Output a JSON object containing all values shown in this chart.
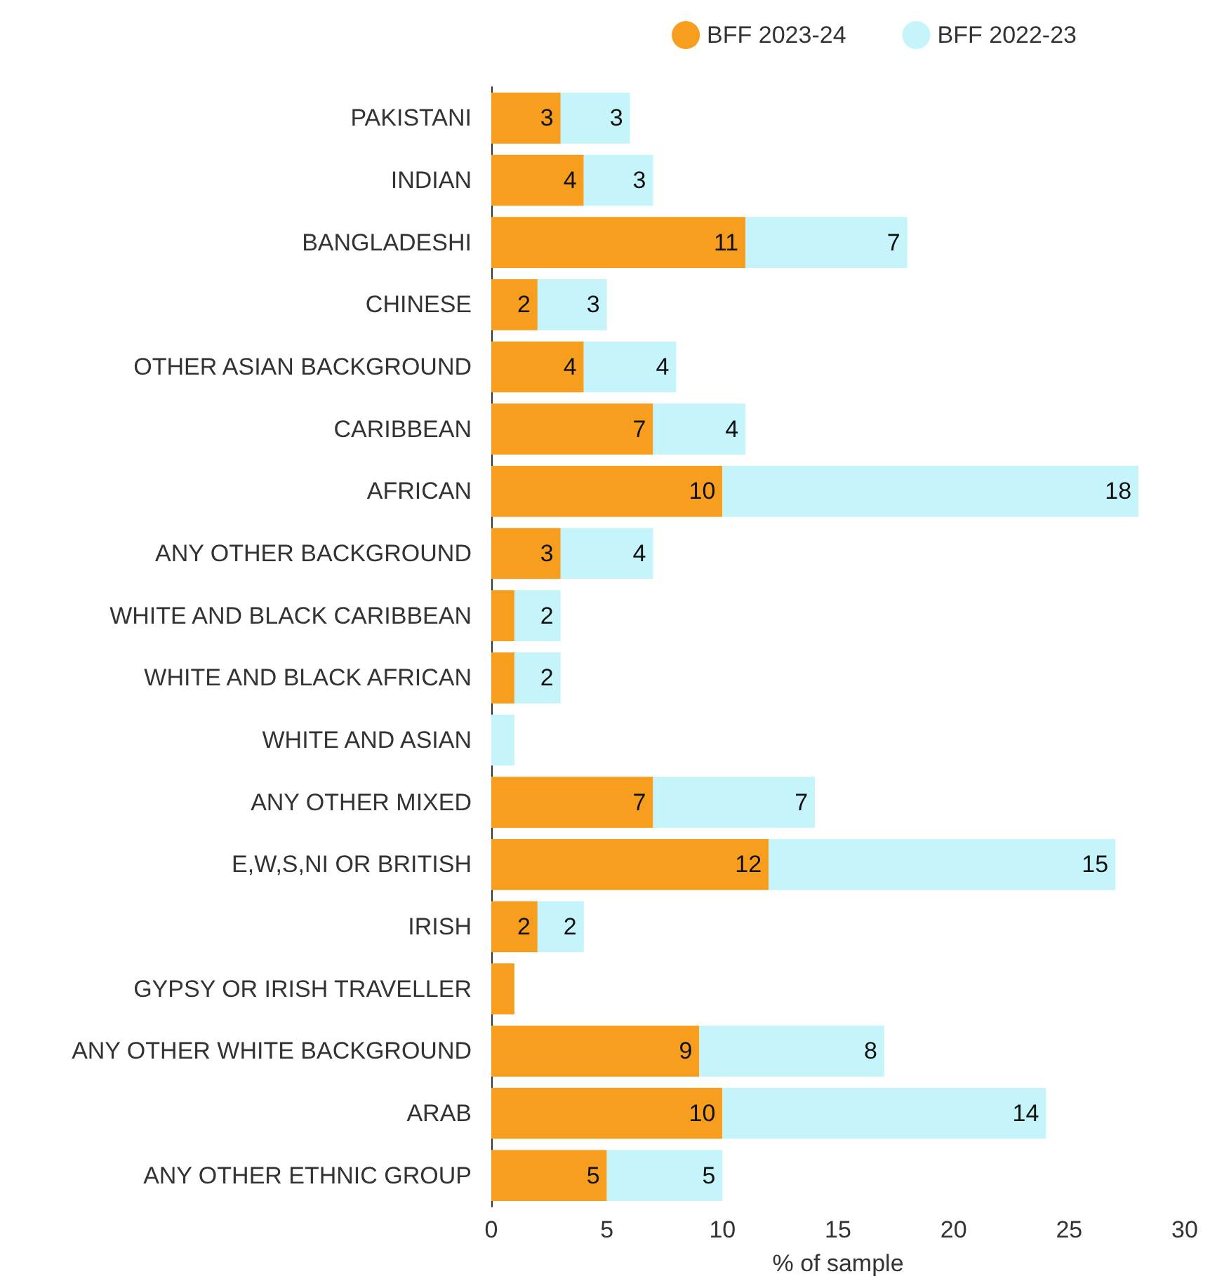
{
  "chart_data": {
    "type": "bar",
    "orientation": "horizontal",
    "stacked": true,
    "xlabel": "% of sample",
    "legend": "top right",
    "grid": false,
    "categories": [
      "PAKISTANI",
      "INDIAN",
      "BANGLADESHI",
      "CHINESE",
      "OTHER ASIAN BACKGROUND",
      "CARIBBEAN",
      "AFRICAN",
      "ANY OTHER BACKGROUND",
      "WHITE AND BLACK CARIBBEAN",
      "WHITE AND BLACK AFRICAN",
      "WHITE AND ASIAN",
      "ANY OTHER MIXED",
      "E,W,S,NI OR BRITISH",
      "IRISH",
      "GYPSY OR IRISH TRAVELLER",
      "ANY OTHER WHITE BACKGROUND",
      "ARAB",
      "ANY OTHER ETHNIC GROUP"
    ],
    "xlim": [
      0,
      30
    ],
    "xticks": [
      0,
      5,
      10,
      15,
      20,
      25,
      30
    ],
    "series": [
      {
        "name": "BFF 2023-24",
        "color": "#f89e1e",
        "values": [
          3,
          4,
          11,
          2,
          4,
          7,
          10,
          3,
          1,
          1,
          0,
          7,
          12,
          2,
          1,
          9,
          10,
          5
        ],
        "value_labels": [
          "3",
          "4",
          "11",
          "2",
          "4",
          "7",
          "10",
          "3",
          null,
          null,
          null,
          "7",
          "12",
          "2",
          null,
          "9",
          "10",
          "5"
        ]
      },
      {
        "name": "BFF 2022-23",
        "color": "#c5f5fa",
        "values": [
          3,
          3,
          7,
          3,
          4,
          4,
          18,
          4,
          2,
          2,
          1,
          7,
          15,
          2,
          0,
          8,
          14,
          5
        ],
        "value_labels": [
          "3",
          "3",
          "7",
          "3",
          "4",
          "4",
          "18",
          "4",
          "2",
          "2",
          null,
          "7",
          "15",
          "2",
          null,
          "8",
          "14",
          "5"
        ]
      }
    ]
  }
}
